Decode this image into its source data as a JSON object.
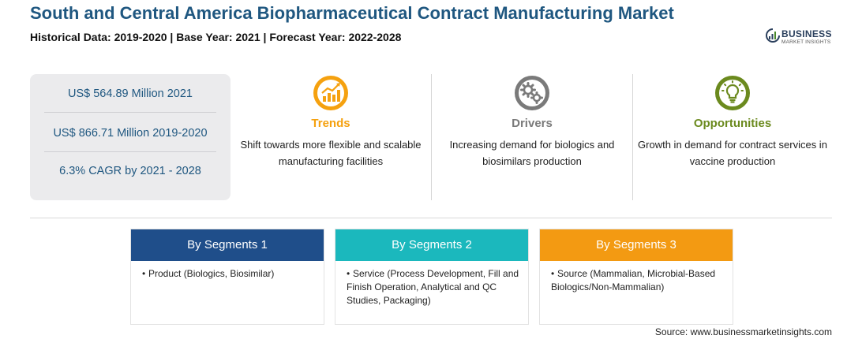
{
  "header": {
    "title": "South and Central America Biopharmaceutical Contract Manufacturing Market",
    "subtitle": "Historical Data: 2019-2020 | Base Year: 2021 | Forecast Year: 2022-2028"
  },
  "logo": {
    "main": "BUSINESS",
    "sub": "MARKET INSIGHTS"
  },
  "stats": [
    "US$ 564.89 Million 2021",
    "US$ 866.71 Million 2019-2020",
    "6.3% CAGR by 2021 - 2028"
  ],
  "categories": [
    {
      "label": "Trends",
      "text": "Shift towards more flexible and scalable manufacturing facilities",
      "color": "#f5a10f",
      "icon": "trend-chart-icon"
    },
    {
      "label": "Drivers",
      "text": "Increasing demand for biologics and biosimilars production",
      "color": "#7a7a7a",
      "icon": "gears-icon"
    },
    {
      "label": "Opportunities",
      "text": "Growth in demand for contract services in vaccine production",
      "color": "#6b8a1e",
      "icon": "lightbulb-icon"
    }
  ],
  "segments": [
    {
      "title": "By Segments 1",
      "bullet": "Product (Biologics, Biosimilar)",
      "color": "#1f4e8a"
    },
    {
      "title": "By Segments 2",
      "bullet": "Service (Process Development, Fill and Finish Operation, Analytical and QC Studies, Packaging)",
      "color": "#1bb8bd"
    },
    {
      "title": "By Segments 3",
      "bullet": "Source (Mammalian, Microbial-Based Biologics/Non-Mammalian)",
      "color": "#f39a12"
    }
  ],
  "source": "Source: www.businessmarketinsights.com"
}
